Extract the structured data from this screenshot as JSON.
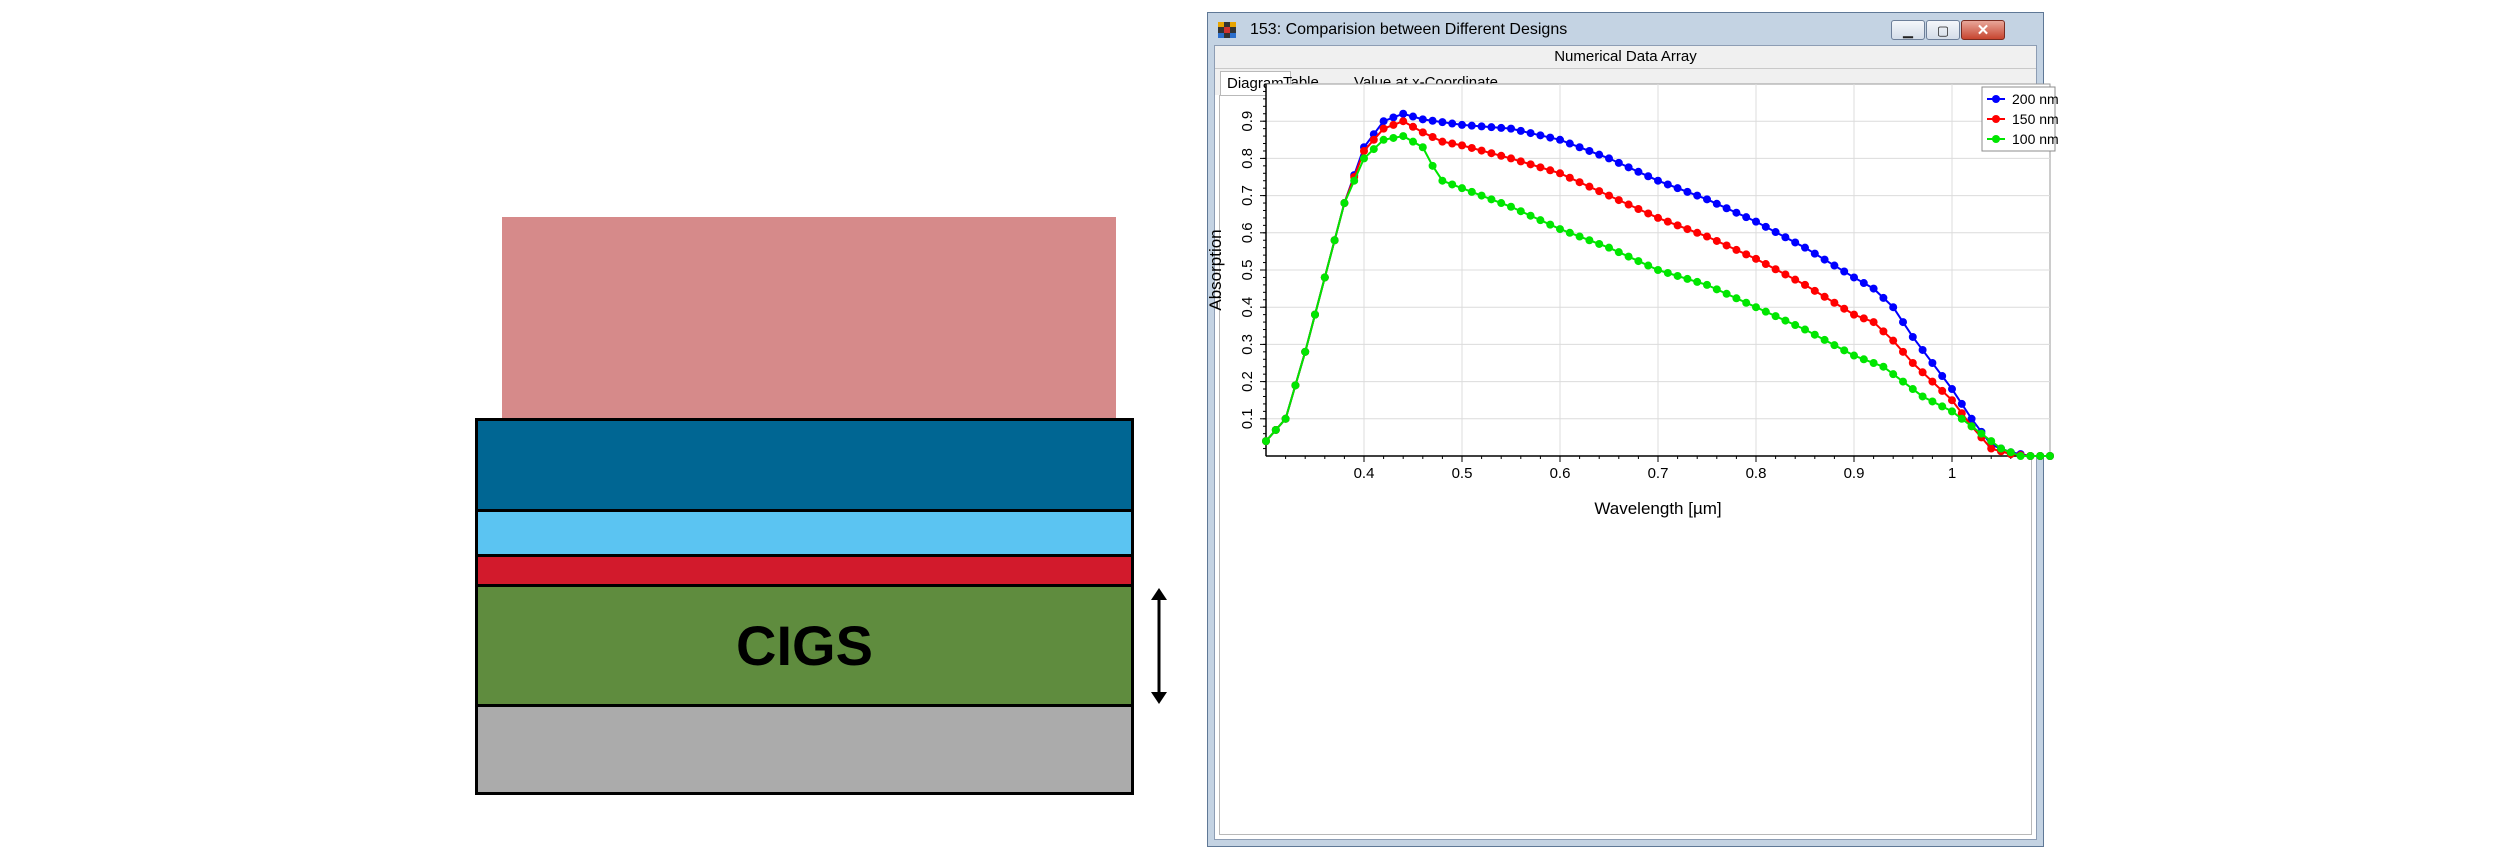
{
  "schematic": {
    "absorber_label": "CIGS",
    "colors": {
      "illumination": "#d68a8a",
      "top_layer": "#006693",
      "second_layer": "#5bc4f2",
      "third_layer": "#d21a2c",
      "absorber": "#5f8c3e",
      "back_layer": "#ababab"
    }
  },
  "window": {
    "title": "153: Comparision between Different Designs",
    "subtitle": "Numerical Data Array",
    "tabs": [
      {
        "label": "Diagram",
        "active": true
      },
      {
        "label": "Table",
        "active": false
      },
      {
        "label": "Value at x-Coordinate",
        "active": false
      }
    ],
    "buttons": {
      "minimize_icon": "minimize-icon",
      "maximize_icon": "maximize-icon",
      "close_icon": "close-icon"
    }
  },
  "chart_data": {
    "type": "line",
    "xlabel": "Wavelength [µm]",
    "ylabel": "Absorption",
    "xlim": [
      0.3,
      1.1
    ],
    "ylim": [
      0,
      1
    ],
    "xticks": [
      0.4,
      0.5,
      0.6,
      0.7,
      0.8,
      0.9,
      1
    ],
    "xtick_labels": [
      "0.4",
      "0.5",
      "0.6",
      "0.7",
      "0.8",
      "0.9",
      "1"
    ],
    "yticks": [
      0.1,
      0.2,
      0.3,
      0.4,
      0.5,
      0.6,
      0.7,
      0.8,
      0.9
    ],
    "ytick_labels": [
      "0.1",
      "0.2",
      "0.3",
      "0.4",
      "0.5",
      "0.6",
      "0.7",
      "0.8",
      "0.9"
    ],
    "grid": true,
    "legend_position": "top-right",
    "series": [
      {
        "name": "200 nm",
        "color": "#0000ff",
        "x": [
          0.3,
          0.32,
          0.34,
          0.36,
          0.38,
          0.4,
          0.42,
          0.44,
          0.46,
          0.5,
          0.55,
          0.6,
          0.65,
          0.7,
          0.75,
          0.8,
          0.85,
          0.9,
          0.92,
          0.94,
          0.96,
          0.98,
          1.0,
          1.02,
          1.04,
          1.06,
          1.08,
          1.1
        ],
        "y": [
          0.04,
          0.1,
          0.28,
          0.48,
          0.68,
          0.83,
          0.9,
          0.92,
          0.905,
          0.89,
          0.88,
          0.85,
          0.8,
          0.74,
          0.69,
          0.63,
          0.56,
          0.48,
          0.45,
          0.4,
          0.32,
          0.25,
          0.18,
          0.1,
          0.03,
          0.01,
          0.0,
          0.0
        ]
      },
      {
        "name": "150 nm",
        "color": "#ff0000",
        "x": [
          0.3,
          0.32,
          0.34,
          0.36,
          0.38,
          0.4,
          0.42,
          0.44,
          0.46,
          0.48,
          0.5,
          0.55,
          0.6,
          0.65,
          0.7,
          0.75,
          0.8,
          0.85,
          0.9,
          0.92,
          0.94,
          0.96,
          0.98,
          1.0,
          1.02,
          1.04,
          1.06,
          1.08,
          1.1
        ],
        "y": [
          0.04,
          0.1,
          0.28,
          0.48,
          0.68,
          0.82,
          0.88,
          0.9,
          0.87,
          0.845,
          0.835,
          0.8,
          0.76,
          0.7,
          0.64,
          0.59,
          0.53,
          0.46,
          0.38,
          0.36,
          0.31,
          0.25,
          0.2,
          0.15,
          0.08,
          0.02,
          0.005,
          0.0,
          0.0
        ]
      },
      {
        "name": "100 nm",
        "color": "#00e600",
        "x": [
          0.3,
          0.32,
          0.34,
          0.36,
          0.38,
          0.4,
          0.42,
          0.44,
          0.46,
          0.47,
          0.48,
          0.5,
          0.55,
          0.6,
          0.65,
          0.7,
          0.75,
          0.8,
          0.85,
          0.9,
          0.93,
          0.95,
          0.97,
          1.0,
          1.03,
          1.05,
          1.07,
          1.09,
          1.1
        ],
        "y": [
          0.04,
          0.1,
          0.28,
          0.48,
          0.68,
          0.8,
          0.85,
          0.86,
          0.83,
          0.78,
          0.74,
          0.72,
          0.67,
          0.61,
          0.56,
          0.5,
          0.46,
          0.4,
          0.34,
          0.27,
          0.24,
          0.2,
          0.16,
          0.12,
          0.06,
          0.02,
          0.0,
          0.0,
          0.0
        ]
      }
    ]
  }
}
